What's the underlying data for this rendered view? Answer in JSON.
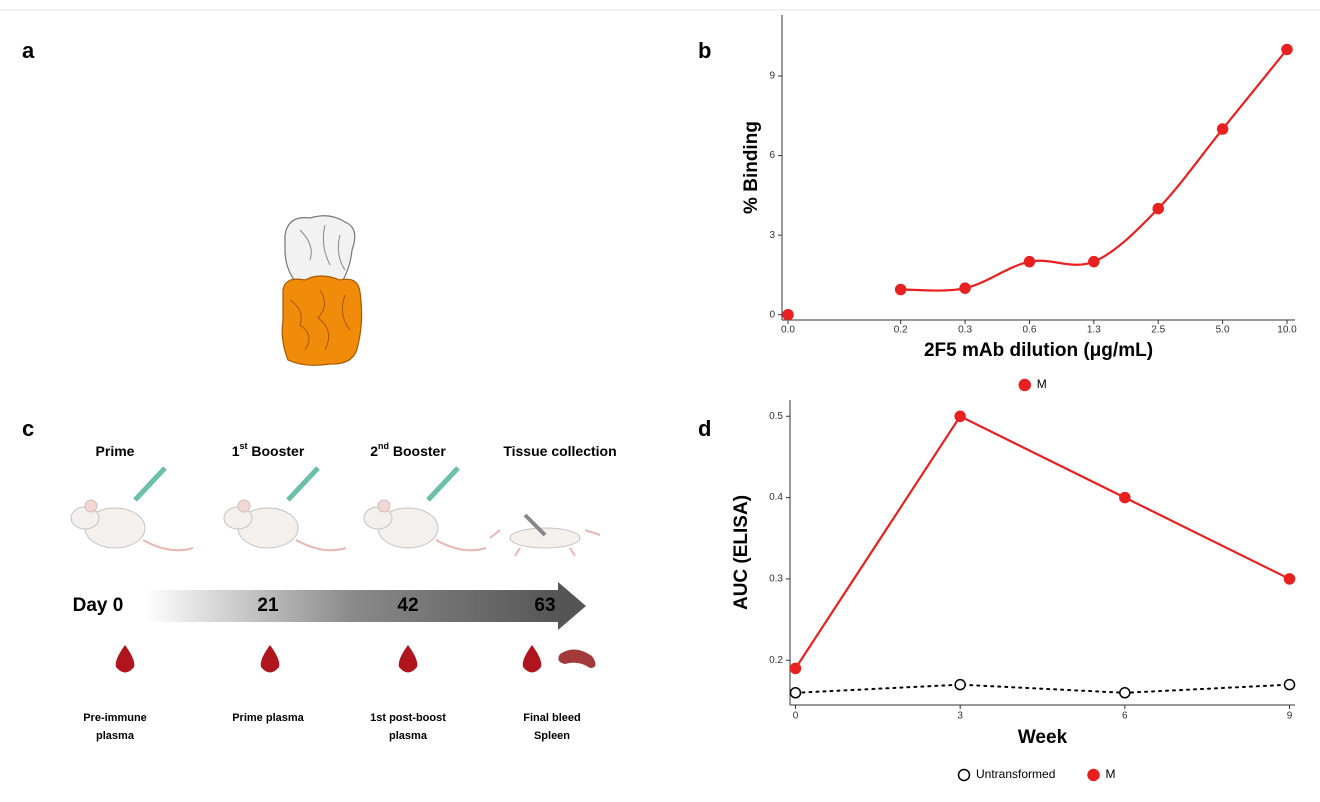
{
  "panel_labels": [
    "a",
    "b",
    "c",
    "d"
  ],
  "chart_data": [
    {
      "type": "scatter",
      "x_label": "2F5 mAb dilution (μg/mL)",
      "y_label": "% Binding",
      "categories": [
        "0.0",
        "0.2",
        "0.3",
        "0.6",
        "1.3",
        "2.5",
        "5.0",
        "10.0"
      ],
      "series": [
        {
          "name": "M",
          "color": "#e8201f",
          "values": [
            0,
            0.95,
            1,
            2,
            2,
            4,
            7,
            10
          ]
        }
      ],
      "ylim": [
        -0.2,
        11.3
      ],
      "yticks": [
        0,
        3,
        6,
        9
      ],
      "legend": "bottom"
    },
    {
      "type": "line",
      "x_label": "Week",
      "y_label": "AUC (ELISA)",
      "x": [
        0,
        3,
        6,
        9
      ],
      "xlim": [
        -0.1,
        9.1
      ],
      "xticks": [
        0,
        3,
        6,
        9
      ],
      "ylim": [
        0.145,
        0.52
      ],
      "yticks": [
        0.2,
        0.3,
        0.4,
        0.5
      ],
      "legend": "bottom",
      "series": [
        {
          "name": "Untransformed",
          "color": "#000000",
          "marker": "open",
          "linestyle": "dotted",
          "values": [
            0.16,
            0.17,
            0.16,
            0.17
          ]
        },
        {
          "name": "M",
          "color": "#e8201f",
          "marker": "filled",
          "linestyle": "solid",
          "values": [
            0.19,
            0.5,
            0.4,
            0.3
          ]
        }
      ]
    }
  ],
  "timeline": {
    "stages": [
      {
        "text": "Prime"
      },
      {
        "text": "1",
        "sup": "st",
        "tail": " Booster"
      },
      {
        "text": "2",
        "sup": "nd",
        "tail": " Booster"
      },
      {
        "text": "Tissue collection"
      }
    ],
    "days": [
      "Day 0",
      "21",
      "42",
      "63"
    ],
    "samples": [
      {
        "lines": [
          "Pre-immune",
          "plasma"
        ]
      },
      {
        "lines": [
          "Prime plasma"
        ]
      },
      {
        "lines": [
          "1st post-boost",
          "plasma"
        ]
      },
      {
        "lines": [
          "Final bleed",
          "Spleen"
        ]
      }
    ]
  }
}
